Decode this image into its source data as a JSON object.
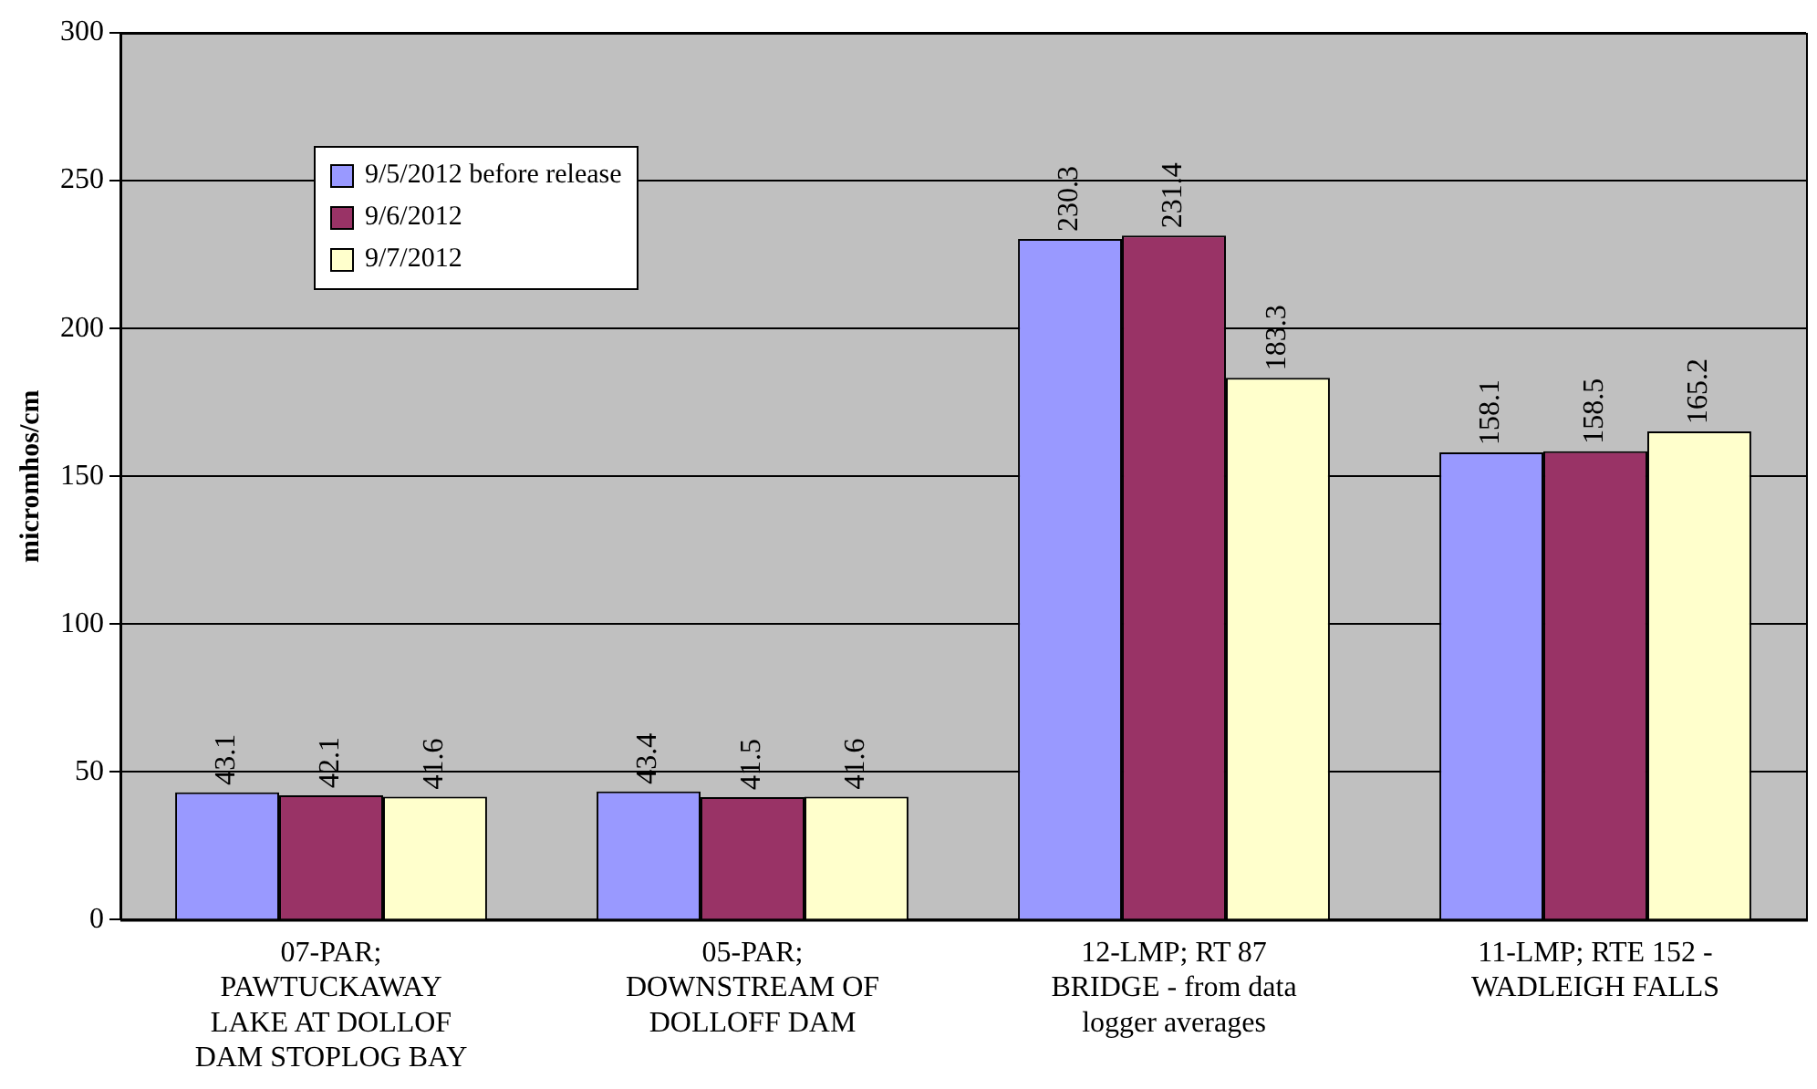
{
  "chart_data": {
    "type": "bar",
    "ylabel": "micromhos/cm",
    "categories": [
      "07-PAR;\nPAWTUCKAWAY\nLAKE AT DOLLOF\nDAM STOPLOG BAY",
      "05-PAR;\nDOWNSTREAM OF\nDOLLOFF DAM",
      "12-LMP; RT 87\nBRIDGE - from data\nlogger averages",
      "11-LMP; RTE 152 -\nWADLEIGH FALLS"
    ],
    "series": [
      {
        "name": "9/5/2012 before release",
        "color": "#9999ff",
        "values": [
          43.1,
          43.4,
          230.3,
          158.1
        ]
      },
      {
        "name": "9/6/2012",
        "color": "#993366",
        "values": [
          42.1,
          41.5,
          231.4,
          158.5
        ]
      },
      {
        "name": "9/7/2012",
        "color": "#ffffcc",
        "values": [
          41.6,
          41.6,
          183.3,
          165.2
        ]
      }
    ],
    "ylim": [
      0,
      300
    ],
    "yticks": [
      0,
      50,
      100,
      150,
      200,
      250,
      300
    ],
    "grid": "y",
    "legend": "top left",
    "data_labels": true
  }
}
